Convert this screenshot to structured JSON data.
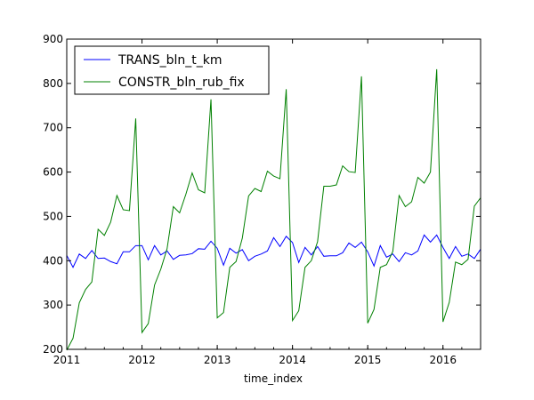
{
  "chart_data": {
    "type": "line",
    "xlabel": "time_index",
    "ylabel": "",
    "x_ticks": [
      "2011",
      "2012",
      "2013",
      "2014",
      "2015",
      "2016"
    ],
    "y_ticks": [
      200,
      300,
      400,
      500,
      600,
      700,
      800,
      900
    ],
    "ylim": [
      200,
      900
    ],
    "xlim": [
      "2011-01",
      "2016-07"
    ],
    "grid": false,
    "legend_position": "top-left",
    "x": [
      "2011-01",
      "2011-02",
      "2011-03",
      "2011-04",
      "2011-05",
      "2011-06",
      "2011-07",
      "2011-08",
      "2011-09",
      "2011-10",
      "2011-11",
      "2011-12",
      "2012-01",
      "2012-02",
      "2012-03",
      "2012-04",
      "2012-05",
      "2012-06",
      "2012-07",
      "2012-08",
      "2012-09",
      "2012-10",
      "2012-11",
      "2012-12",
      "2013-01",
      "2013-02",
      "2013-03",
      "2013-04",
      "2013-05",
      "2013-06",
      "2013-07",
      "2013-08",
      "2013-09",
      "2013-10",
      "2013-11",
      "2013-12",
      "2014-01",
      "2014-02",
      "2014-03",
      "2014-04",
      "2014-05",
      "2014-06",
      "2014-07",
      "2014-08",
      "2014-09",
      "2014-10",
      "2014-11",
      "2014-12",
      "2015-01",
      "2015-02",
      "2015-03",
      "2015-04",
      "2015-05",
      "2015-06",
      "2015-07",
      "2015-08",
      "2015-09",
      "2015-10",
      "2015-11",
      "2015-12",
      "2016-01",
      "2016-02",
      "2016-03",
      "2016-04",
      "2016-05",
      "2016-06",
      "2016-07"
    ],
    "series": [
      {
        "name": "TRANS_bln_t_km",
        "color": "#0000ff",
        "values": [
          412,
          385,
          415,
          405,
          423,
          405,
          406,
          398,
          393,
          420,
          420,
          434,
          434,
          402,
          434,
          413,
          422,
          403,
          412,
          413,
          416,
          427,
          426,
          444,
          428,
          390,
          428,
          417,
          425,
          400,
          410,
          415,
          422,
          452,
          432,
          455,
          441,
          396,
          430,
          413,
          432,
          410,
          411,
          411,
          418,
          440,
          430,
          442,
          420,
          388,
          434,
          408,
          415,
          398,
          418,
          413,
          422,
          458,
          442,
          458,
          430,
          405,
          432,
          410,
          415,
          405,
          426
        ]
      },
      {
        "name": "CONSTR_bln_rub_fix",
        "color": "#008000",
        "values": [
          198,
          225,
          305,
          335,
          352,
          471,
          457,
          487,
          547,
          515,
          513,
          721,
          238,
          258,
          345,
          381,
          427,
          522,
          508,
          550,
          598,
          560,
          553,
          764,
          271,
          283,
          385,
          398,
          451,
          546,
          563,
          556,
          602,
          591,
          585,
          787,
          265,
          287,
          385,
          400,
          443,
          568,
          568,
          571,
          614,
          601,
          599,
          816,
          259,
          290,
          385,
          391,
          421,
          547,
          522,
          533,
          588,
          575,
          600,
          832,
          262,
          306,
          397,
          391,
          403,
          523,
          542
        ]
      }
    ]
  }
}
